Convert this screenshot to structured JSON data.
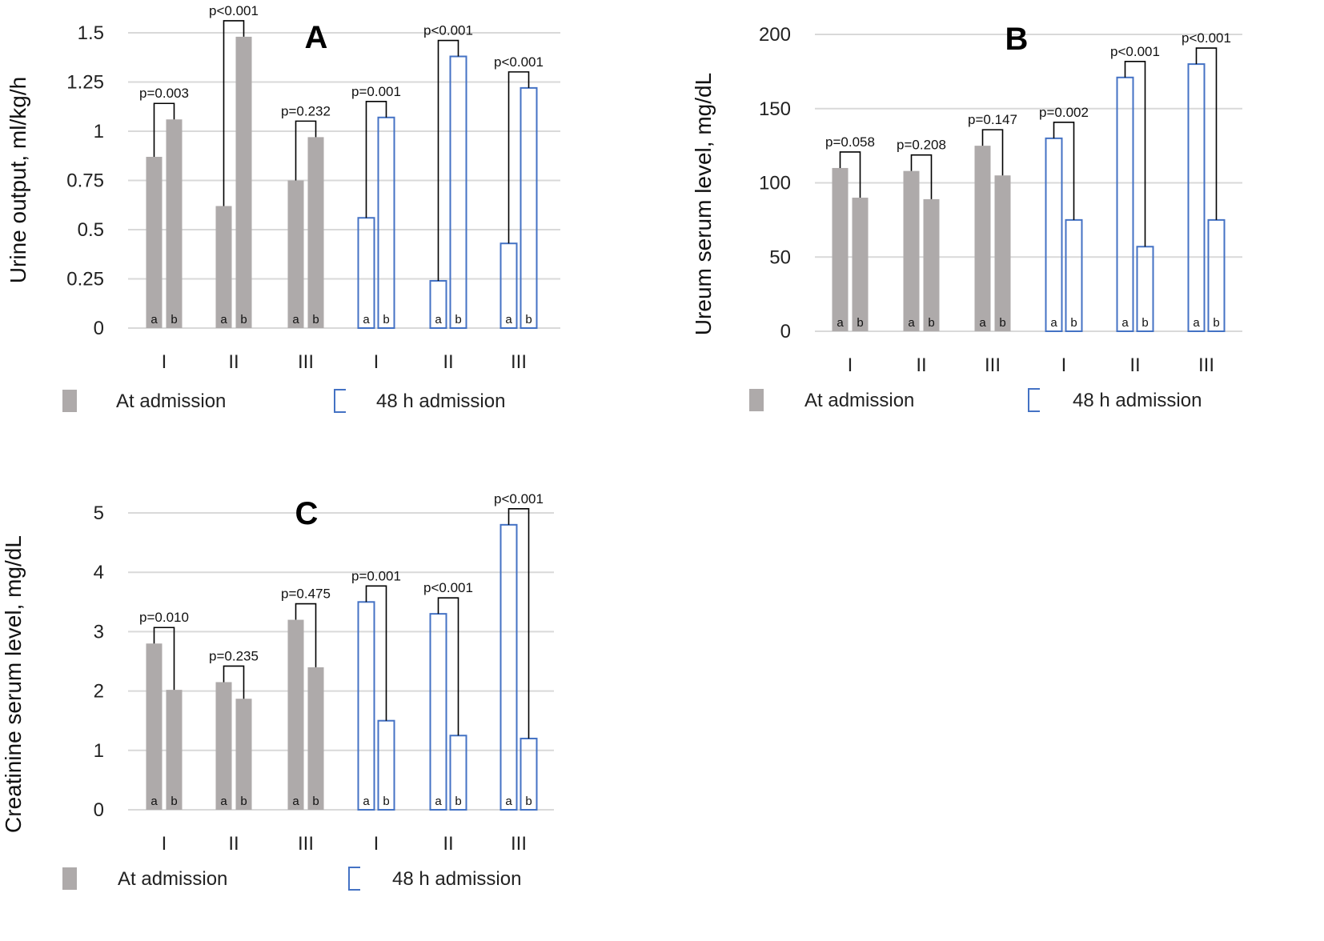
{
  "colors": {
    "admission_fill": "#aeaaaa",
    "h48_stroke": "#4472c4",
    "grid": "#d9d9d9",
    "bracket": "#000000"
  },
  "legend": {
    "at_admission": "At admission",
    "h48_admission": "48 h admission"
  },
  "chart_data": [
    {
      "type": "bar",
      "panel_label": "A",
      "ylabel": "Urine output, ml/kg/h",
      "ylim": [
        0,
        1.5
      ],
      "yticks": [
        "0",
        "0.25",
        "0.5",
        "0.75",
        "1",
        "1.25",
        "1.5"
      ],
      "grid": true,
      "legend_position": "bottom",
      "categories": [
        "I",
        "II",
        "III",
        "I",
        "II",
        "III"
      ],
      "category_series": [
        "At admission",
        "At admission",
        "At admission",
        "48 h admission",
        "48 h admission",
        "48 h admission"
      ],
      "series": [
        {
          "name": "a",
          "values": [
            0.87,
            0.62,
            0.75,
            0.56,
            0.24,
            0.43
          ]
        },
        {
          "name": "b",
          "values": [
            1.06,
            1.48,
            0.97,
            1.07,
            1.38,
            1.22
          ]
        }
      ],
      "p_values": [
        "p=0.003",
        "p<0.001",
        "p=0.232",
        "p=0.001",
        "p<0.001",
        "p<0.001"
      ]
    },
    {
      "type": "bar",
      "panel_label": "B",
      "ylabel": "Ureum serum level, mg/dL",
      "ylim": [
        0,
        200
      ],
      "yticks": [
        "0",
        "50",
        "100",
        "150",
        "200"
      ],
      "grid": true,
      "legend_position": "bottom",
      "categories": [
        "I",
        "II",
        "III",
        "I",
        "II",
        "III"
      ],
      "category_series": [
        "At admission",
        "At admission",
        "At admission",
        "48 h admission",
        "48 h admission",
        "48 h admission"
      ],
      "series": [
        {
          "name": "a",
          "values": [
            110,
            108,
            125,
            130,
            171,
            180
          ]
        },
        {
          "name": "b",
          "values": [
            90,
            89,
            105,
            75,
            57,
            75
          ]
        }
      ],
      "p_values": [
        "p=0.058",
        "p=0.208",
        "p=0.147",
        "p=0.002",
        "p<0.001",
        "p<0.001"
      ]
    },
    {
      "type": "bar",
      "panel_label": "C",
      "ylabel": "Creatinine serum level, mg/dL",
      "ylim": [
        0,
        5
      ],
      "yticks": [
        "0",
        "1",
        "2",
        "3",
        "4",
        "5"
      ],
      "grid": true,
      "legend_position": "bottom",
      "categories": [
        "I",
        "II",
        "III",
        "I",
        "II",
        "III"
      ],
      "category_series": [
        "At admission",
        "At admission",
        "At admission",
        "48 h admission",
        "48 h admission",
        "48 h admission"
      ],
      "series": [
        {
          "name": "a",
          "values": [
            2.8,
            2.15,
            3.2,
            3.5,
            3.3,
            4.8
          ]
        },
        {
          "name": "b",
          "values": [
            2.02,
            1.87,
            2.4,
            1.5,
            1.25,
            1.2
          ]
        }
      ],
      "p_values": [
        "p=0.010",
        "p=0.235",
        "p=0.475",
        "p=0.001",
        "p<0.001",
        "p<0.001"
      ]
    }
  ]
}
